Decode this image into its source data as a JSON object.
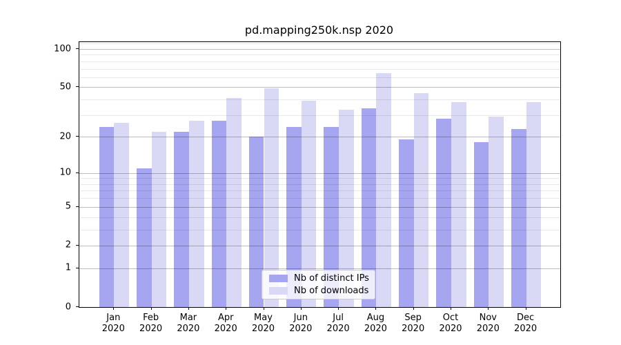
{
  "title": "pd.mapping250k.nsp 2020",
  "chart_data": {
    "type": "bar",
    "title": "pd.mapping250k.nsp 2020",
    "categories": [
      "Jan",
      "Feb",
      "Mar",
      "Apr",
      "May",
      "Jun",
      "Jul",
      "Aug",
      "Sep",
      "Oct",
      "Nov",
      "Dec"
    ],
    "x_tick_year": "2020",
    "series": [
      {
        "name": "Nb of distinct IPs",
        "color": "#a5a5f0",
        "values": [
          24,
          11,
          22,
          27,
          20,
          24,
          24,
          34,
          19,
          28,
          18,
          23
        ]
      },
      {
        "name": "Nb of downloads",
        "color": "#d9d9f6",
        "values": [
          26,
          22,
          27,
          41,
          49,
          39,
          33,
          65,
          45,
          38,
          29,
          38
        ]
      }
    ],
    "yscale": "log1p",
    "ylim": [
      0,
      113.3
    ],
    "y_ticks": [
      100,
      50,
      20,
      10,
      5,
      2,
      1,
      0
    ],
    "y_minor_gridlines": [
      3,
      4,
      6,
      7,
      8,
      9,
      30,
      40,
      60,
      70,
      80,
      90,
      110
    ],
    "grid": "major and minor horizontal gridlines drawn over bars",
    "legend_position": "lower center"
  },
  "colors": {
    "spine": "#000000",
    "major_grid": "rgba(0,0,0,0.26)",
    "minor_grid": "rgba(0,0,0,0.085)",
    "background": "#ffffff"
  }
}
